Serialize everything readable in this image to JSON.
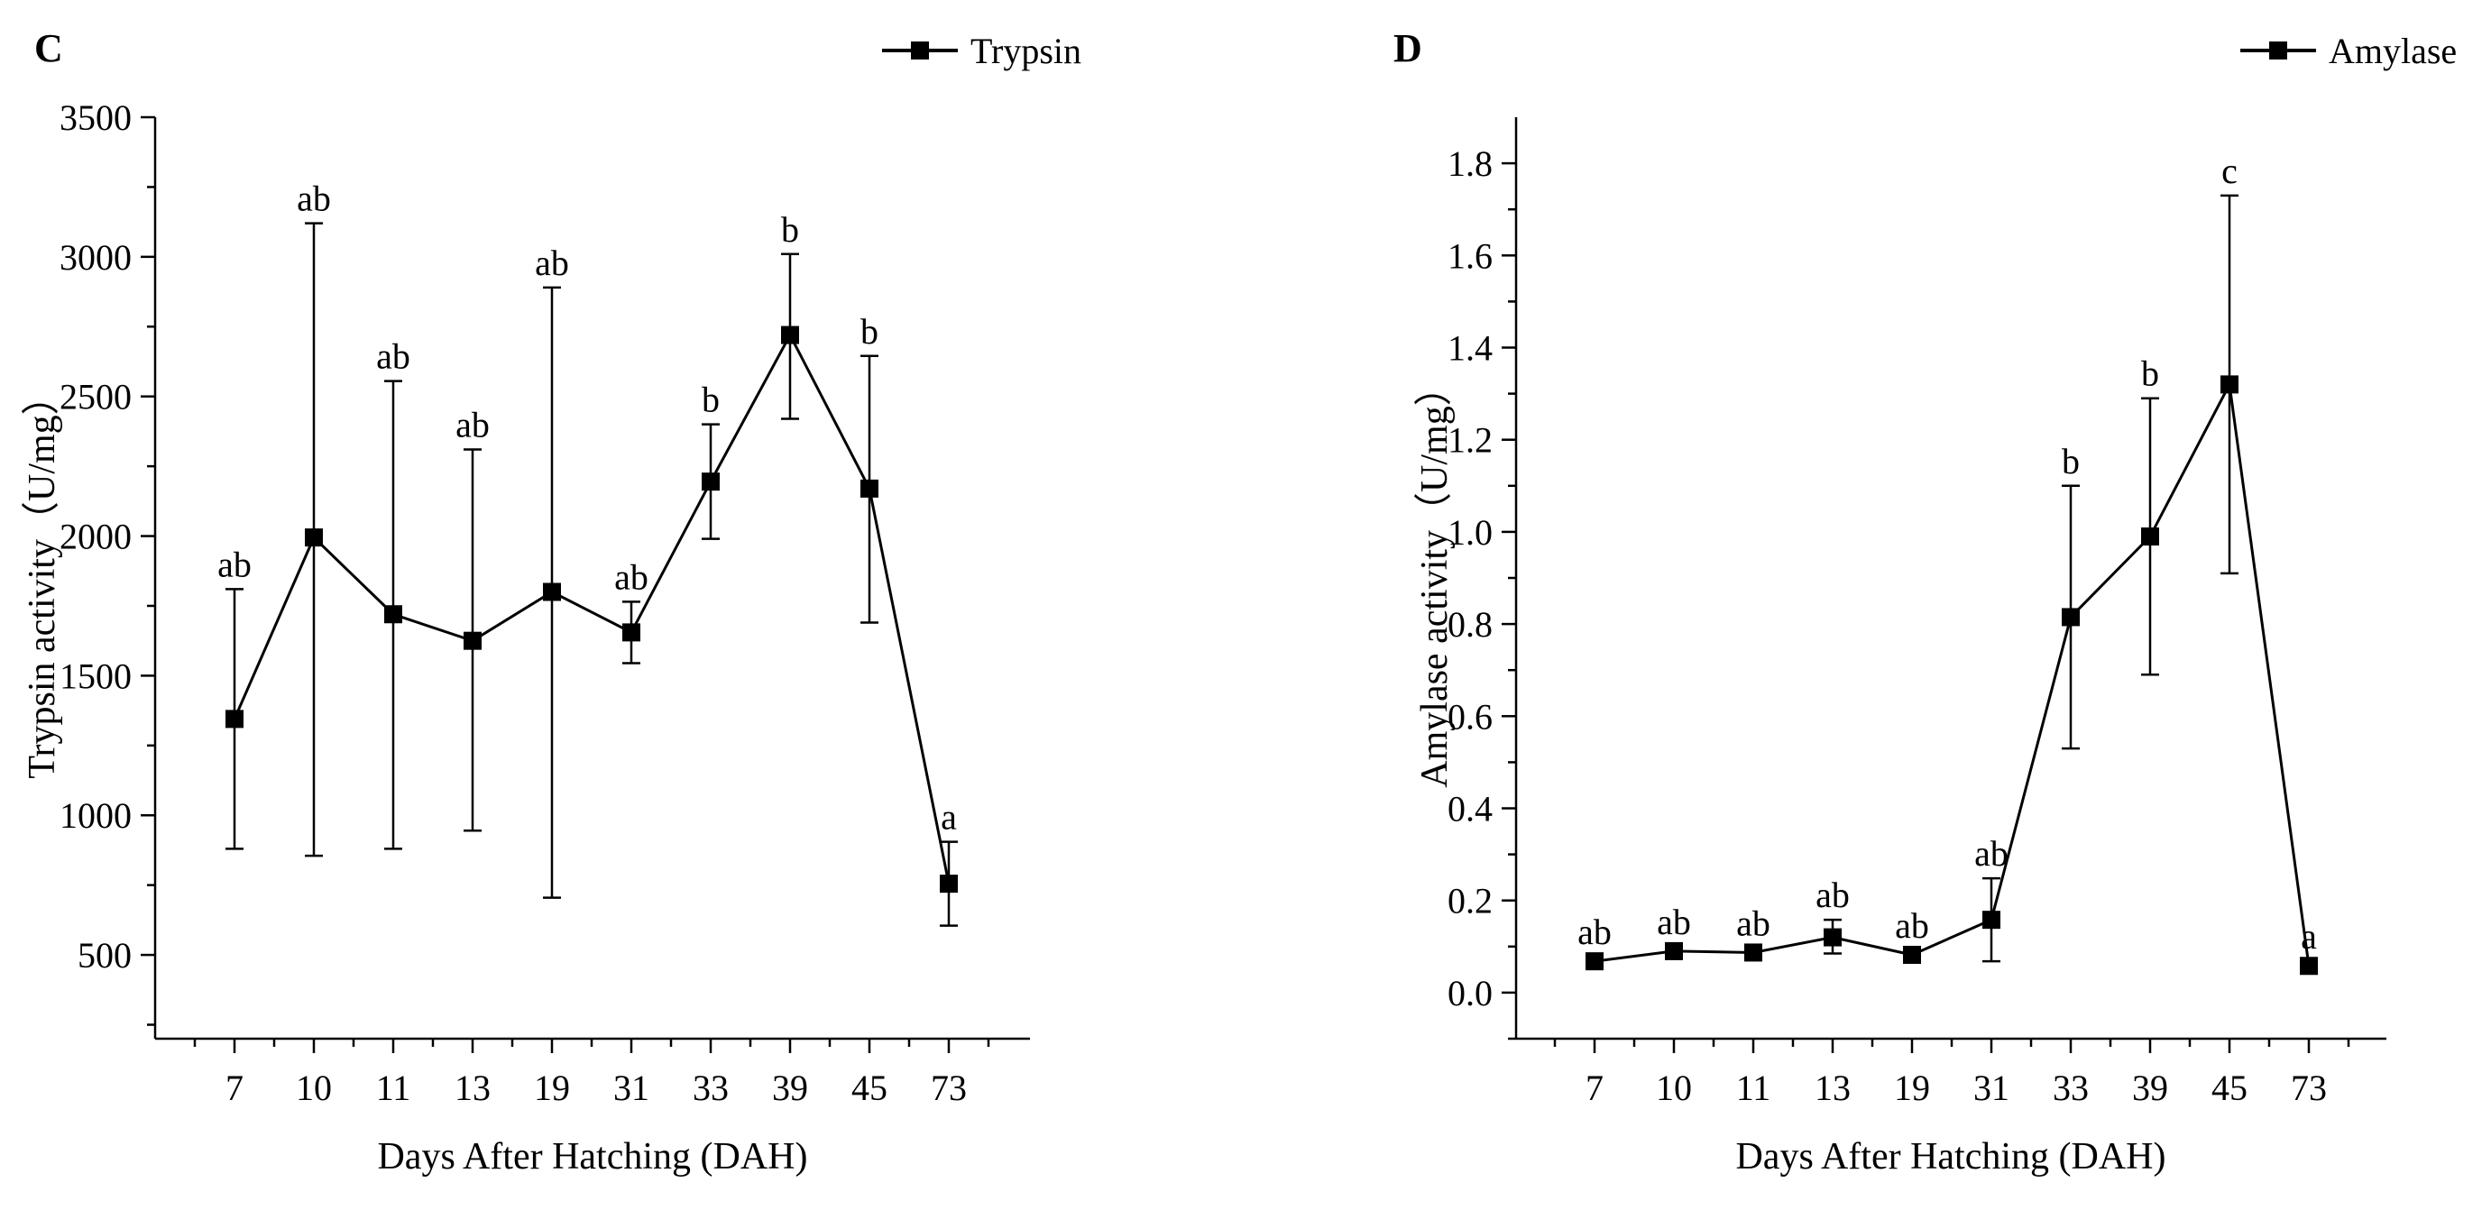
{
  "chart_data": [
    {
      "type": "line",
      "panel_label": "C",
      "categories": [
        "7",
        "10",
        "11",
        "13",
        "19",
        "31",
        "33",
        "39",
        "45",
        "73"
      ],
      "series": [
        {
          "name": "Trypsin",
          "values": [
            1345,
            1995,
            1720,
            1625,
            1800,
            1655,
            2195,
            2720,
            2170,
            755
          ],
          "error_low": [
            880,
            855,
            880,
            945,
            705,
            1545,
            1990,
            2420,
            1690,
            605
          ],
          "error_high": [
            1810,
            3120,
            2555,
            2310,
            2890,
            1765,
            2400,
            3010,
            2645,
            905
          ],
          "labels": [
            "ab",
            "ab",
            "ab",
            "ab",
            "ab",
            "ab",
            "b",
            "b",
            "b",
            "a"
          ]
        }
      ],
      "xlabel": "Days After Hatching (DAH)",
      "ylabel": "Trypsin activity（U/mg）",
      "ylim": [
        200,
        3500
      ],
      "yticks": [
        500,
        1000,
        1500,
        2000,
        2500,
        3000,
        3500
      ],
      "legend_position": "top-right",
      "grid": false,
      "marker": "square",
      "color": "#000000"
    },
    {
      "type": "line",
      "panel_label": "D",
      "categories": [
        "7",
        "10",
        "11",
        "13",
        "19",
        "31",
        "33",
        "39",
        "45",
        "73"
      ],
      "series": [
        {
          "name": "Amylase",
          "values": [
            0.068,
            0.09,
            0.087,
            0.12,
            0.082,
            0.158,
            0.815,
            0.99,
            1.32,
            0.058
          ],
          "error_low": [
            0.058,
            0.08,
            0.077,
            0.085,
            0.072,
            0.068,
            0.53,
            0.69,
            0.91,
            0.048
          ],
          "error_high": [
            0.078,
            0.1,
            0.097,
            0.158,
            0.092,
            0.248,
            1.1,
            1.29,
            1.73,
            0.068
          ],
          "labels": [
            "ab",
            "ab",
            "ab",
            "ab",
            "ab",
            "ab",
            "b",
            "b",
            "c",
            "a"
          ]
        }
      ],
      "xlabel": "Days After Hatching (DAH)",
      "ylabel": "Amylase activity（U/mg）",
      "ylim": [
        -0.1,
        1.9
      ],
      "yticks": [
        0.0,
        0.2,
        0.4,
        0.6,
        0.8,
        1.0,
        1.2,
        1.4,
        1.6,
        1.8
      ],
      "ytick_labels": [
        "0.0",
        "0.2",
        "0.4",
        "0.6",
        "0.8",
        "1.0",
        "1.2",
        "1.4",
        "1.6",
        "1.8"
      ],
      "legend_position": "top-right",
      "grid": false,
      "marker": "square",
      "color": "#000000"
    }
  ]
}
